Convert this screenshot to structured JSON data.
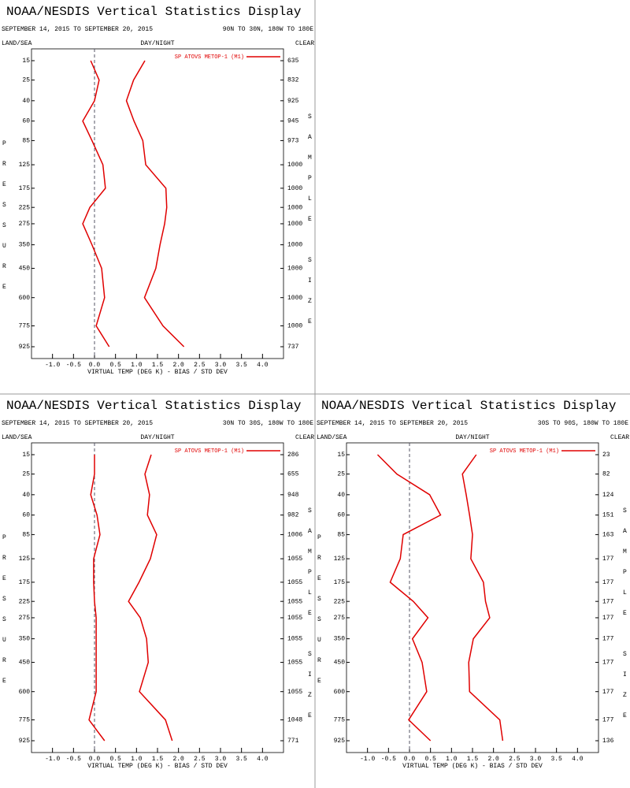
{
  "chart_data": [
    {
      "type": "line",
      "title": "NOAA/NESDIS Vertical Statistics Display",
      "subtitle": "SEPTEMBER 14, 2015 TO SEPTEMBER 20, 2015",
      "region": "90N TO 30N, 180W TO 180E",
      "land_sea_label": "LAND/SEA",
      "day_night_label": "DAY/NIGHT",
      "clear_label": "CLEAR",
      "y_label": "PRESSURE",
      "y2_label": "SAMPLE SIZE",
      "x_label": "VIRTUAL TEMP (DEG K) - BIAS / STD DEV",
      "categories": [
        15,
        25,
        40,
        60,
        85,
        125,
        175,
        225,
        275,
        350,
        450,
        600,
        775,
        925
      ],
      "sample_size": [
        635,
        832,
        925,
        945,
        973,
        1000,
        1000,
        1000,
        1000,
        1000,
        1000,
        1000,
        1000,
        737
      ],
      "series": [
        {
          "name": "SP ATOVS METOP-1 (M1)",
          "color": "#e00000",
          "bias": [
            -0.09,
            0.11,
            0.0,
            -0.28,
            -0.06,
            0.2,
            0.26,
            -0.11,
            -0.28,
            -0.06,
            0.17,
            0.24,
            0.04,
            0.35
          ],
          "std_dev": [
            1.2,
            0.93,
            0.76,
            0.94,
            1.15,
            1.22,
            1.7,
            1.72,
            1.67,
            1.56,
            1.46,
            1.19,
            1.63,
            2.13
          ]
        }
      ],
      "xlim": [
        -1.5,
        4.5
      ],
      "xticks": [
        {
          "value": -1,
          "label": "-1.0"
        },
        {
          "value": -0.5,
          "label": "-0.5"
        },
        {
          "value": 0,
          "label": "0.0"
        },
        {
          "value": 0.5,
          "label": "0.5"
        },
        {
          "value": 1,
          "label": "1.0"
        },
        {
          "value": 1.5,
          "label": "1.5"
        },
        {
          "value": 2,
          "label": "2.0"
        },
        {
          "value": 2.5,
          "label": "2.5"
        },
        {
          "value": 3,
          "label": "3.0"
        },
        {
          "value": 3.5,
          "label": "3.5"
        },
        {
          "value": 4,
          "label": "4.0"
        }
      ],
      "zero_line": true
    },
    {
      "type": "line",
      "title": "NOAA/NESDIS Vertical Statistics Display",
      "subtitle": "SEPTEMBER 14, 2015 TO SEPTEMBER 20, 2015",
      "region": "30N TO 30S, 180W TO 180E",
      "land_sea_label": "LAND/SEA",
      "day_night_label": "DAY/NIGHT",
      "clear_label": "CLEAR",
      "y_label": "PRESSURE",
      "y2_label": "SAMPLE SIZE",
      "x_label": "VIRTUAL TEMP (DEG K) - BIAS / STD DEV",
      "categories": [
        15,
        25,
        40,
        60,
        85,
        125,
        175,
        225,
        275,
        350,
        450,
        600,
        775,
        925
      ],
      "sample_size": [
        286,
        655,
        948,
        982,
        1006,
        1055,
        1055,
        1055,
        1055,
        1055,
        1055,
        1055,
        1048,
        771
      ],
      "series": [
        {
          "name": "SP ATOVS METOP-1 (M1)",
          "color": "#e00000",
          "bias": [
            0.0,
            0.0,
            -0.09,
            0.06,
            0.13,
            -0.02,
            -0.02,
            0.0,
            0.04,
            0.04,
            0.04,
            0.04,
            -0.13,
            0.24
          ],
          "std_dev": [
            1.35,
            1.2,
            1.31,
            1.26,
            1.48,
            1.33,
            1.06,
            0.81,
            1.09,
            1.24,
            1.28,
            1.07,
            1.69,
            1.85
          ]
        }
      ],
      "xlim": [
        -1.5,
        4.5
      ],
      "xticks": [
        {
          "value": -1,
          "label": "-1.0"
        },
        {
          "value": -0.5,
          "label": "-0.5"
        },
        {
          "value": 0,
          "label": "0.0"
        },
        {
          "value": 0.5,
          "label": "0.5"
        },
        {
          "value": 1,
          "label": "1.0"
        },
        {
          "value": 1.5,
          "label": "1.5"
        },
        {
          "value": 2,
          "label": "2.0"
        },
        {
          "value": 2.5,
          "label": "2.5"
        },
        {
          "value": 3,
          "label": "3.0"
        },
        {
          "value": 3.5,
          "label": "3.5"
        },
        {
          "value": 4,
          "label": "4.0"
        }
      ],
      "zero_line": true
    },
    {
      "type": "line",
      "title": "NOAA/NESDIS Vertical Statistics Display",
      "subtitle": "SEPTEMBER 14, 2015 TO SEPTEMBER 20, 2015",
      "region": "30S TO 90S, 180W TO 180E",
      "land_sea_label": "LAND/SEA",
      "day_night_label": "DAY/NIGHT",
      "clear_label": "CLEAR",
      "y_label": "PRESSURE",
      "y2_label": "SAMPLE SIZE",
      "x_label": "VIRTUAL TEMP (DEG K) - BIAS / STD DEV",
      "categories": [
        15,
        25,
        40,
        60,
        85,
        125,
        175,
        225,
        275,
        350,
        450,
        600,
        775,
        925
      ],
      "sample_size": [
        23,
        82,
        124,
        151,
        163,
        177,
        177,
        177,
        177,
        177,
        177,
        177,
        177,
        136
      ],
      "series": [
        {
          "name": "SP ATOVS METOP-1 (M1)",
          "color": "#e00000",
          "bias": [
            -0.76,
            -0.3,
            0.48,
            0.74,
            -0.15,
            -0.22,
            -0.46,
            0.09,
            0.44,
            0.07,
            0.3,
            0.41,
            -0.02,
            0.5
          ],
          "std_dev": [
            1.59,
            1.26,
            1.35,
            1.43,
            1.5,
            1.46,
            1.76,
            1.81,
            1.91,
            1.52,
            1.41,
            1.43,
            2.15,
            2.22
          ]
        }
      ],
      "xlim": [
        -1.5,
        4.5
      ],
      "xticks": [
        {
          "value": -1,
          "label": "-1.0"
        },
        {
          "value": -0.5,
          "label": "-0.5"
        },
        {
          "value": 0,
          "label": "0.0"
        },
        {
          "value": 0.5,
          "label": "0.5"
        },
        {
          "value": 1,
          "label": "1.0"
        },
        {
          "value": 1.5,
          "label": "1.5"
        },
        {
          "value": 2,
          "label": "2.0"
        },
        {
          "value": 2.5,
          "label": "2.5"
        },
        {
          "value": 3,
          "label": "3.0"
        },
        {
          "value": 3.5,
          "label": "3.5"
        },
        {
          "value": 4,
          "label": "4.0"
        }
      ],
      "zero_line": true
    }
  ]
}
